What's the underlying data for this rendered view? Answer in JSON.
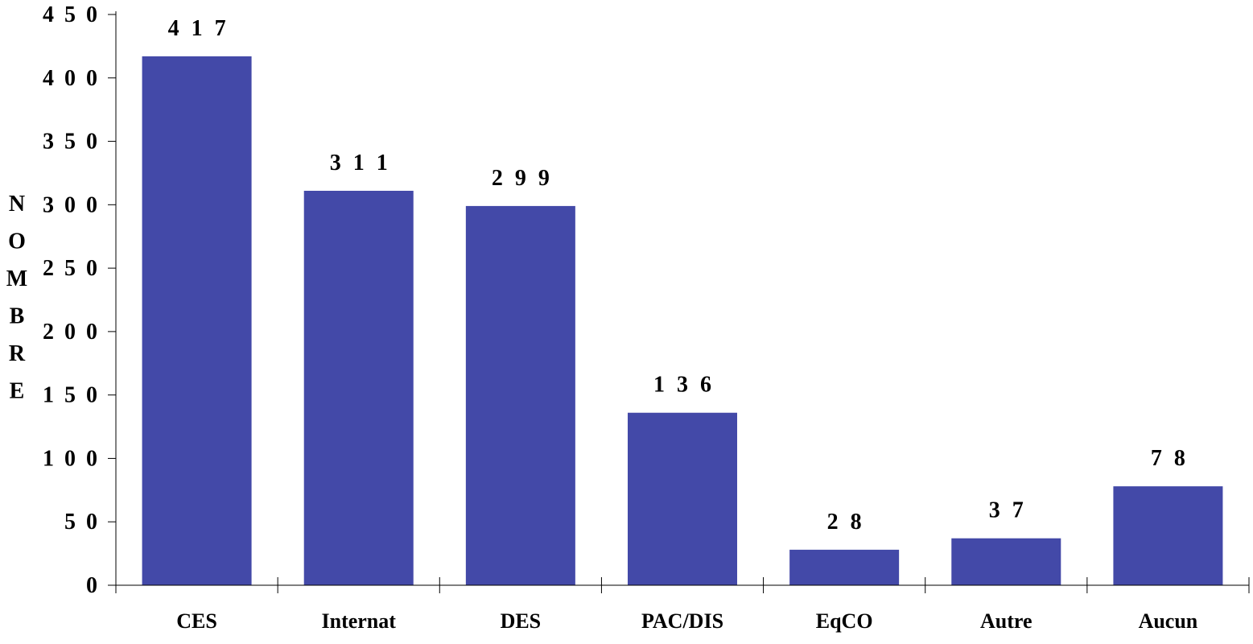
{
  "chart_data": {
    "type": "bar",
    "categories": [
      "CES",
      "Internat",
      "DES",
      "PAC/DIS",
      "EqCO",
      "Autre",
      "Aucun"
    ],
    "values": [
      417,
      311,
      299,
      136,
      28,
      37,
      78
    ],
    "data_labels": [
      "4 1 7",
      "3 1 1",
      "2 9 9",
      "1 3 6",
      "2 8",
      "3 7",
      "7 8"
    ],
    "y_tick_values": [
      0,
      50,
      100,
      150,
      200,
      250,
      300,
      350,
      400,
      450
    ],
    "y_tick_labels": [
      "0",
      "5 0",
      "1 0 0",
      "1 5 0",
      "2 0 0",
      "2 5 0",
      "3 0 0",
      "3 5 0",
      "4 0 0",
      "4 5 0"
    ],
    "ylabel": "NOMBRE",
    "xlabel": "",
    "title": "",
    "ylim": [
      0,
      450
    ],
    "grid": false,
    "legend": "none",
    "bar_color": "#4349a8",
    "axis_color": "#000000"
  }
}
